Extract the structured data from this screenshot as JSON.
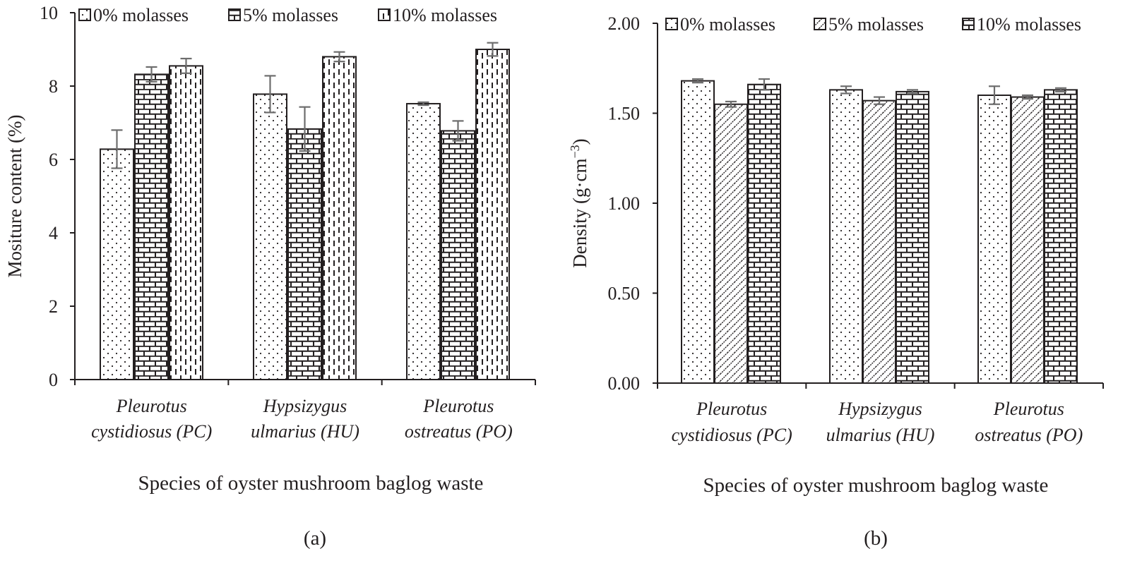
{
  "chart_data": [
    {
      "type": "bar",
      "panel_label": "(a)",
      "title": "",
      "xlabel": "Species of oyster mushroom baglog waste",
      "ylabel": "Mositure content (%)",
      "ylim": [
        0,
        10
      ],
      "yticks": [
        0,
        2,
        4,
        6,
        8,
        10
      ],
      "ytick_labels": [
        "0",
        "2",
        "4",
        "6",
        "8",
        "10"
      ],
      "categories": [
        [
          "Pleurotus",
          "cystidiosus (PC)"
        ],
        [
          "Hypsizygus",
          "ulmarius (HU)"
        ],
        [
          "Pleurotus",
          "ostreatus (PO)"
        ]
      ],
      "legend_position": "top",
      "series": [
        {
          "name": "0% molasses",
          "pattern": "dots",
          "values": [
            6.28,
            7.78,
            7.52
          ],
          "errors": [
            0.52,
            0.5,
            0.04
          ]
        },
        {
          "name": "5% molasses",
          "pattern": "bricks",
          "values": [
            8.32,
            6.83,
            6.78
          ],
          "errors": [
            0.2,
            0.6,
            0.27
          ]
        },
        {
          "name": "10% molasses",
          "pattern": "dashes",
          "values": [
            8.55,
            8.8,
            9.0
          ],
          "errors": [
            0.2,
            0.13,
            0.18
          ]
        }
      ]
    },
    {
      "type": "bar",
      "panel_label": "(b)",
      "title": "",
      "xlabel": "Species of oyster mushroom baglog waste",
      "ylabel": "Density (g·cm",
      "ylabel_sup": "−3",
      "ylabel_end": ")",
      "ylim": [
        0,
        2
      ],
      "yticks": [
        0,
        0.5,
        1,
        1.5,
        2
      ],
      "ytick_labels": [
        "0.00",
        "0.50",
        "1.00",
        "1.50",
        "2.00"
      ],
      "categories": [
        [
          "Pleurotus",
          "cystidiosus (PC)"
        ],
        [
          "Hypsizygus",
          "ulmarius (HU)"
        ],
        [
          "Pleurotus",
          "ostreatus (PO)"
        ]
      ],
      "legend_position": "top",
      "series": [
        {
          "name": "0% molasses",
          "pattern": "dots",
          "values": [
            1.68,
            1.63,
            1.6
          ],
          "errors": [
            0.01,
            0.02,
            0.05
          ]
        },
        {
          "name": "5% molasses",
          "pattern": "hatch",
          "values": [
            1.55,
            1.57,
            1.59
          ],
          "errors": [
            0.015,
            0.02,
            0.01
          ]
        },
        {
          "name": "10% molasses",
          "pattern": "bricks",
          "values": [
            1.66,
            1.62,
            1.63
          ],
          "errors": [
            0.03,
            0.01,
            0.01
          ]
        }
      ]
    }
  ]
}
